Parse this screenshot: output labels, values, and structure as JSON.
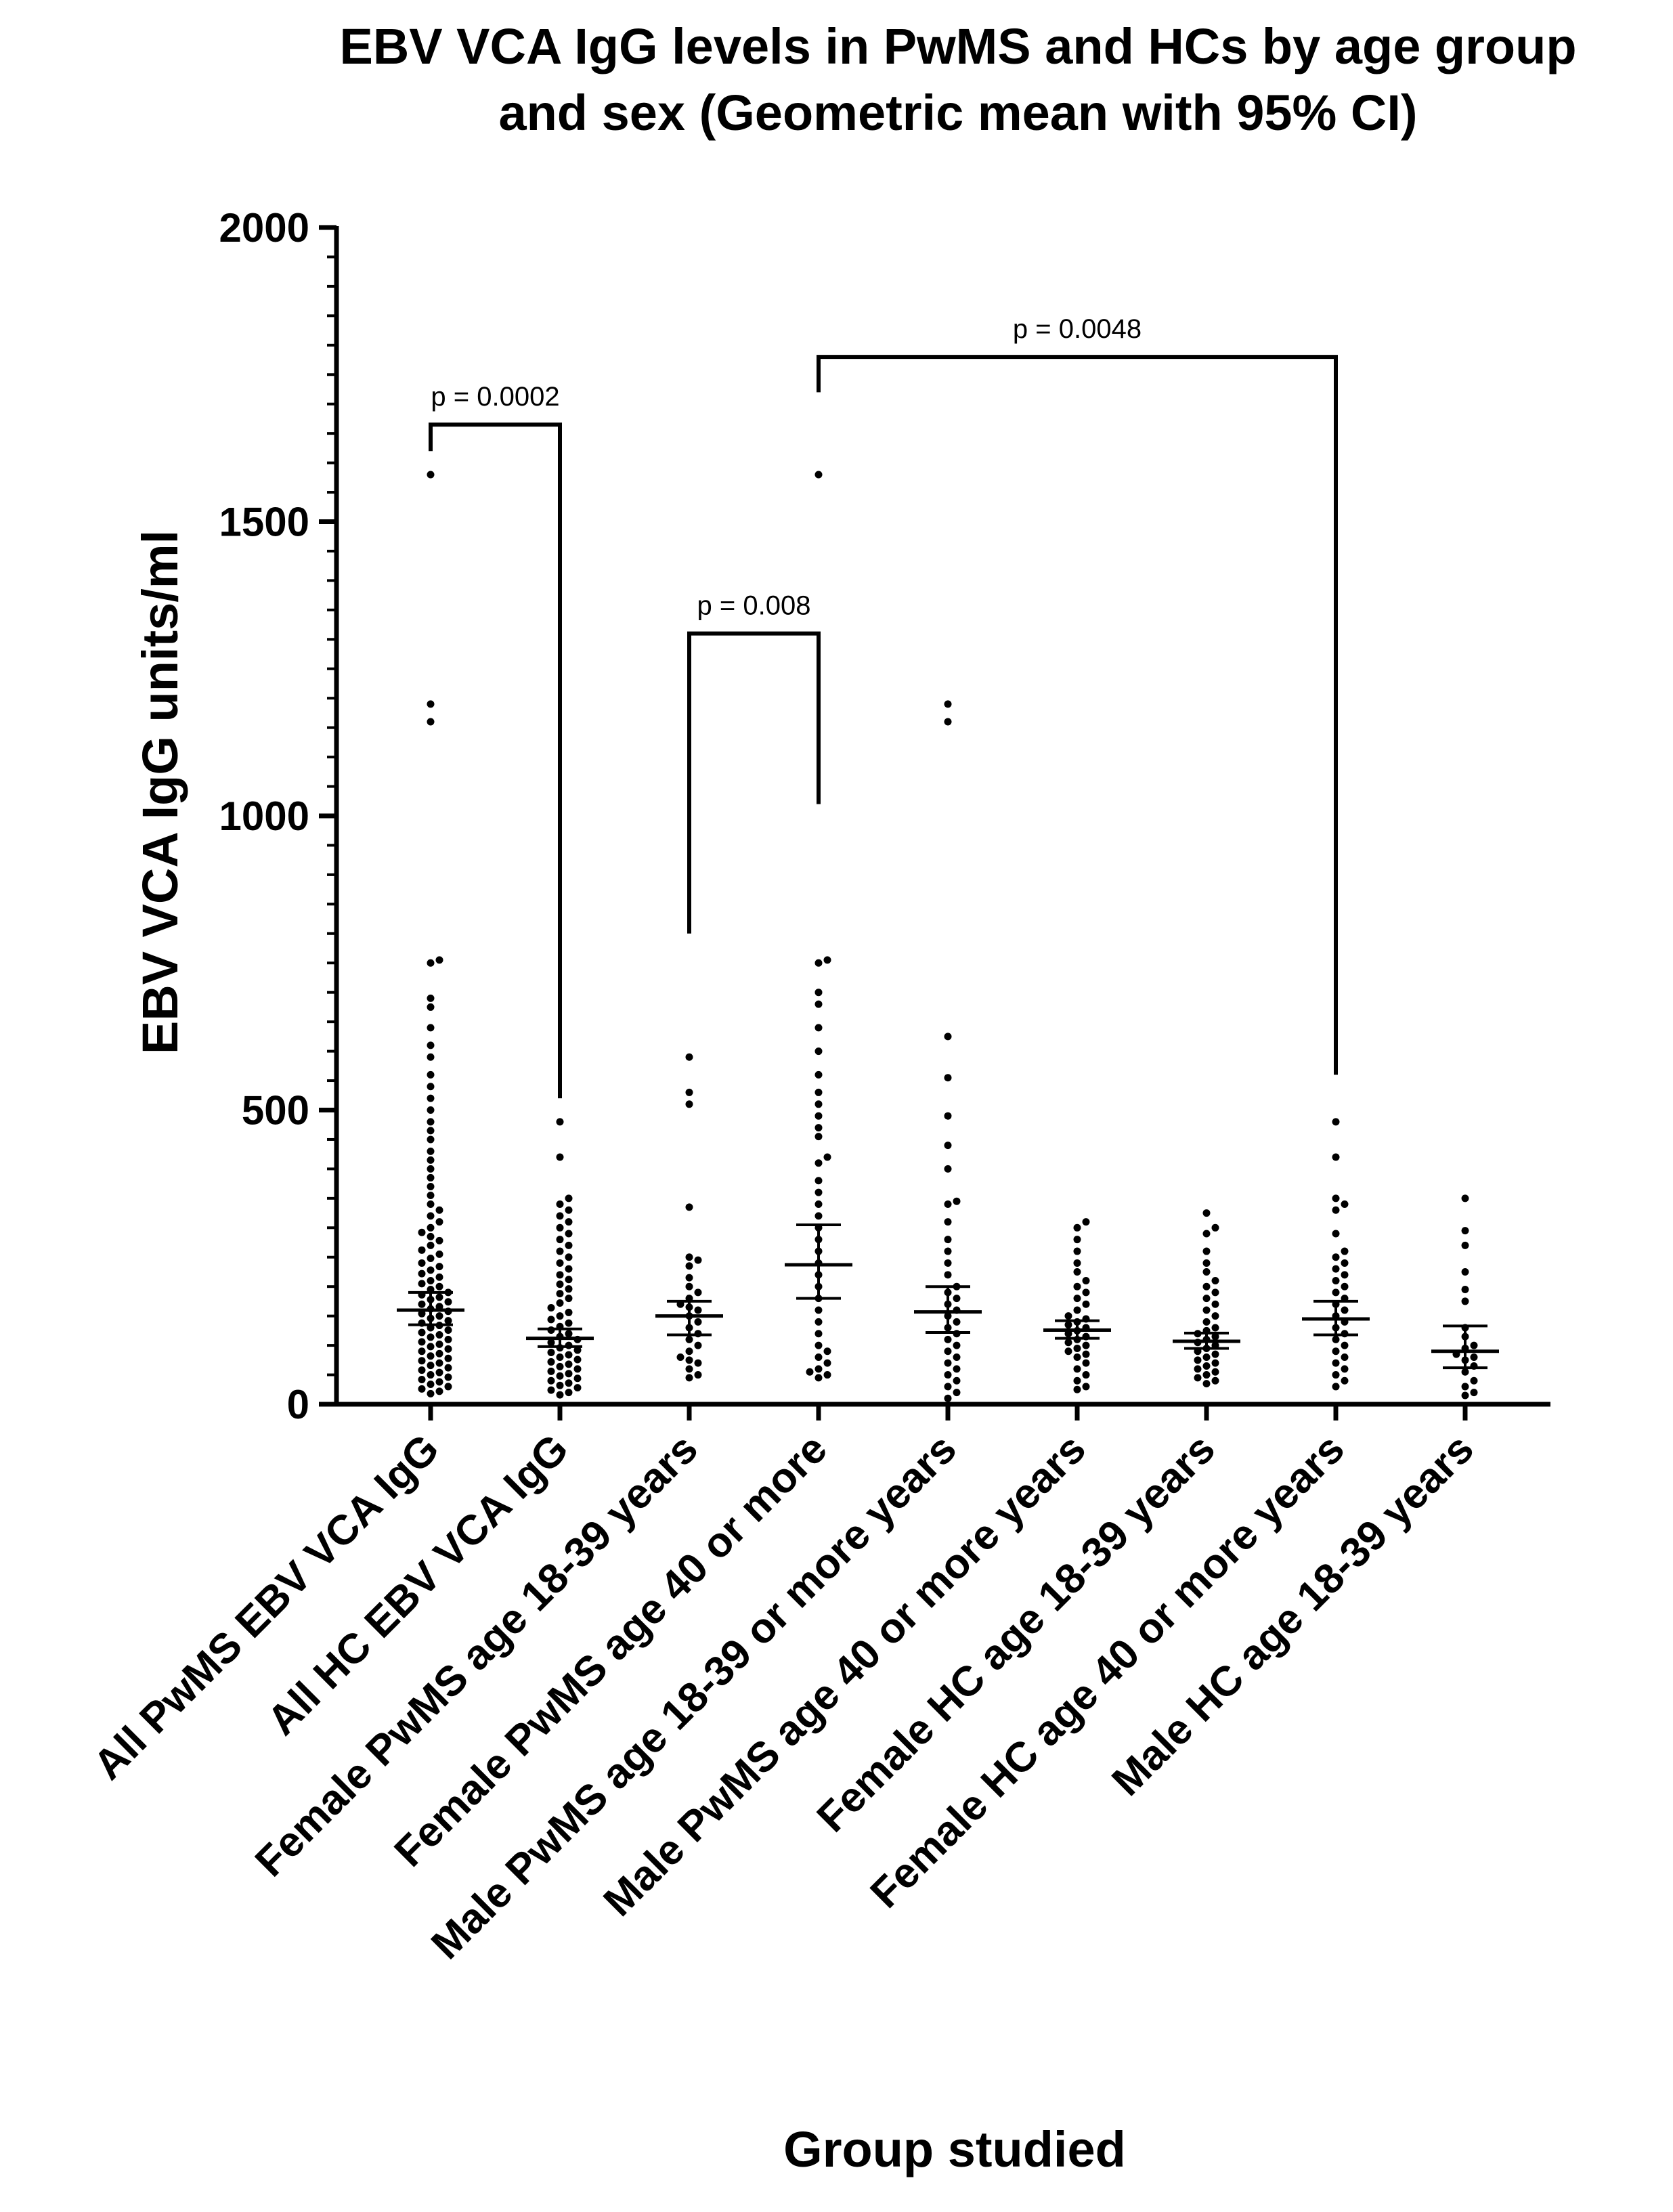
{
  "chart_data": {
    "type": "scatter",
    "subtype": "dot-plot with geometric mean and 95% CI",
    "title_lines": [
      "EBV VCA IgG levels in PwMS and HCs by age group",
      "and sex (Geometric mean with 95% CI)"
    ],
    "xlabel": "Group studied",
    "ylabel": "EBV VCA IgG units/ml",
    "ylim": [
      0,
      2000
    ],
    "yticks": [
      0,
      500,
      1000,
      1500,
      2000
    ],
    "ytick_labels": [
      "0",
      "500",
      "1000",
      "1500",
      "2000"
    ],
    "minor_tick_step": 50,
    "grid": false,
    "legend": "none",
    "point_color": "#000000",
    "categories": [
      "All PwMS EBV VCA IgG",
      "All HC EBV VCA IgG",
      "Female PwMS age 18-39 years",
      "Female PwMS age 40 or more",
      "Male PwMS age 18-39 or more years",
      "Male PwMS age 40 or more years",
      "Female HC age 18-39 years",
      "Female HC age 40 or more years",
      "Male HC age 18-39 years"
    ],
    "groups": [
      {
        "category": "All PwMS EBV VCA IgG",
        "geometric_mean": 160,
        "ci_low": 135,
        "ci_high": 190,
        "values": [
          1580,
          1190,
          1160,
          755,
          750,
          690,
          675,
          640,
          610,
          590,
          560,
          540,
          520,
          500,
          480,
          465,
          450,
          430,
          415,
          400,
          385,
          370,
          355,
          340,
          330,
          320,
          310,
          300,
          292,
          285,
          278,
          270,
          262,
          255,
          248,
          240,
          234,
          228,
          222,
          216,
          210,
          205,
          200,
          195,
          190,
          186,
          182,
          178,
          174,
          170,
          166,
          162,
          158,
          154,
          150,
          146,
          142,
          138,
          134,
          130,
          126,
          122,
          118,
          114,
          110,
          106,
          102,
          98,
          94,
          90,
          86,
          82,
          78,
          74,
          70,
          66,
          62,
          58,
          54,
          50,
          46,
          42,
          38,
          34,
          30,
          26,
          22,
          18
        ]
      },
      {
        "category": "All HC EBV VCA IgG",
        "geometric_mean": 112,
        "ci_low": 98,
        "ci_high": 128,
        "values": [
          480,
          420,
          350,
          340,
          330,
          320,
          310,
          300,
          290,
          280,
          270,
          260,
          250,
          240,
          230,
          220,
          212,
          204,
          196,
          188,
          180,
          172,
          164,
          156,
          150,
          144,
          138,
          132,
          126,
          120,
          115,
          110,
          105,
          100,
          96,
          92,
          88,
          84,
          80,
          76,
          72,
          68,
          64,
          60,
          56,
          52,
          48,
          44,
          40,
          36,
          32,
          28,
          24,
          20,
          16
        ]
      },
      {
        "category": "Female PwMS age 18-39 years",
        "geometric_mean": 150,
        "ci_low": 118,
        "ci_high": 175,
        "values": [
          590,
          530,
          510,
          335,
          250,
          245,
          235,
          215,
          200,
          190,
          180,
          170,
          165,
          160,
          150,
          140,
          130,
          120,
          110,
          100,
          90,
          80,
          75,
          70,
          60,
          50,
          45
        ]
      },
      {
        "category": "Female PwMS age 40 or more",
        "geometric_mean": 237,
        "ci_low": 180,
        "ci_high": 305,
        "values": [
          1580,
          755,
          750,
          700,
          680,
          640,
          600,
          560,
          530,
          510,
          490,
          470,
          455,
          420,
          410,
          380,
          360,
          340,
          320,
          300,
          280,
          260,
          240,
          220,
          200,
          180,
          160,
          140,
          120,
          100,
          90,
          80,
          70,
          60,
          55,
          50,
          45
        ]
      },
      {
        "category": "Male PwMS age 18-39 or more years",
        "geometric_mean": 157,
        "ci_low": 122,
        "ci_high": 200,
        "values": [
          1190,
          1160,
          625,
          555,
          490,
          440,
          400,
          345,
          340,
          310,
          280,
          260,
          240,
          220,
          200,
          190,
          180,
          170,
          160,
          150,
          140,
          130,
          120,
          110,
          100,
          90,
          80,
          70,
          60,
          50,
          40,
          30,
          20,
          10
        ]
      },
      {
        "category": "Male PwMS age 40 or more years",
        "geometric_mean": 126,
        "ci_low": 112,
        "ci_high": 142,
        "values": [
          310,
          300,
          280,
          260,
          240,
          225,
          210,
          200,
          190,
          180,
          170,
          160,
          150,
          145,
          140,
          135,
          130,
          125,
          120,
          115,
          110,
          105,
          100,
          95,
          90,
          85,
          80,
          70,
          60,
          50,
          40,
          30,
          25
        ]
      },
      {
        "category": "Female HC age 18-39 years",
        "geometric_mean": 107,
        "ci_low": 95,
        "ci_high": 121,
        "values": [
          325,
          300,
          290,
          260,
          240,
          225,
          210,
          200,
          190,
          180,
          170,
          160,
          150,
          140,
          130,
          125,
          120,
          115,
          110,
          105,
          100,
          95,
          90,
          85,
          80,
          75,
          70,
          65,
          60,
          55,
          50,
          45,
          40,
          35
        ]
      },
      {
        "category": "Female HC age 40 or more years",
        "geometric_mean": 145,
        "ci_low": 118,
        "ci_high": 175,
        "values": [
          480,
          420,
          350,
          340,
          330,
          290,
          260,
          250,
          240,
          230,
          220,
          210,
          200,
          190,
          180,
          170,
          160,
          150,
          140,
          130,
          120,
          110,
          100,
          90,
          80,
          70,
          60,
          50,
          40,
          30
        ]
      },
      {
        "category": "Male HC age 18-39 years",
        "geometric_mean": 90,
        "ci_low": 62,
        "ci_high": 133,
        "values": [
          350,
          295,
          270,
          225,
          195,
          175,
          130,
          115,
          100,
          95,
          85,
          80,
          75,
          65,
          55,
          40,
          30,
          20,
          15
        ]
      }
    ],
    "comparisons": [
      {
        "label": "p = 0.0002",
        "from": 0,
        "to": 1,
        "bar_y": 1665,
        "left_drop_to": 1620,
        "right_drop_to": 520
      },
      {
        "label": "p = 0.008",
        "from": 2,
        "to": 3,
        "bar_y": 1310,
        "left_drop_to": 800,
        "right_drop_to": 1020
      },
      {
        "label": "p = 0.0048",
        "from": 3,
        "to": 7,
        "bar_y": 1780,
        "left_drop_to": 1720,
        "right_drop_to": 560
      }
    ]
  }
}
